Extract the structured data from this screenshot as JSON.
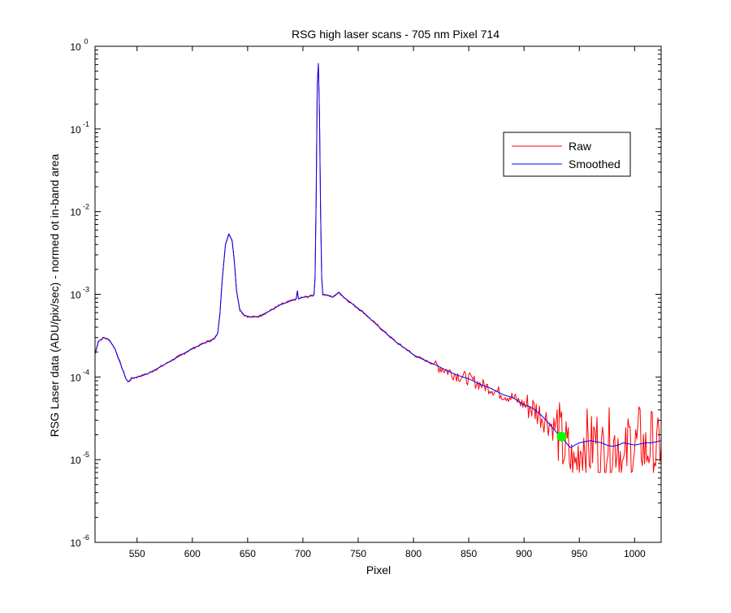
{
  "chart_data": {
    "type": "line",
    "title": "RSG high laser scans  - 705 nm    Pixel 714",
    "xlabel": "Pixel",
    "ylabel": "RSG Laser data (ADU/pix/sec) - normed ot in-band area",
    "xlim": [
      512,
      1024
    ],
    "ylim": [
      1e-06,
      1
    ],
    "yscale": "log",
    "grid": false,
    "legend_position": "top-right",
    "x_ticks": [
      {
        "value": 550,
        "label": "550"
      },
      {
        "value": 600,
        "label": "600"
      },
      {
        "value": 650,
        "label": "650"
      },
      {
        "value": 700,
        "label": "700"
      },
      {
        "value": 750,
        "label": "750"
      },
      {
        "value": 800,
        "label": "800"
      },
      {
        "value": 850,
        "label": "850"
      },
      {
        "value": 900,
        "label": "900"
      },
      {
        "value": 950,
        "label": "950"
      },
      {
        "value": 1000,
        "label": "1000"
      }
    ],
    "y_ticks": [
      {
        "value": 1e-06,
        "base": "10",
        "exp": "-6"
      },
      {
        "value": 1e-05,
        "base": "10",
        "exp": "-5"
      },
      {
        "value": 0.0001,
        "base": "10",
        "exp": "-4"
      },
      {
        "value": 0.001,
        "base": "10",
        "exp": "-3"
      },
      {
        "value": 0.01,
        "base": "10",
        "exp": "-2"
      },
      {
        "value": 0.1,
        "base": "10",
        "exp": "-1"
      },
      {
        "value": 1,
        "base": "10",
        "exp": "0"
      }
    ],
    "series": [
      {
        "name": "Raw",
        "color": "#ff0000",
        "points": [
          [
            512,
            0.00019
          ],
          [
            515,
            0.00027
          ],
          [
            520,
            0.0003
          ],
          [
            525,
            0.00028
          ],
          [
            530,
            0.00022
          ],
          [
            535,
            0.000145
          ],
          [
            540,
            9.5e-05
          ],
          [
            542,
            8.7e-05
          ],
          [
            545,
            9.6e-05
          ],
          [
            550,
            0.0001
          ],
          [
            560,
            0.00011
          ],
          [
            570,
            0.00013
          ],
          [
            580,
            0.000155
          ],
          [
            590,
            0.000185
          ],
          [
            600,
            0.00022
          ],
          [
            610,
            0.000255
          ],
          [
            620,
            0.00029
          ],
          [
            623,
            0.00034
          ],
          [
            625,
            0.0006
          ],
          [
            627,
            0.0015
          ],
          [
            630,
            0.004
          ],
          [
            633,
            0.0054
          ],
          [
            636,
            0.0045
          ],
          [
            638,
            0.0025
          ],
          [
            640,
            0.0011
          ],
          [
            643,
            0.00065
          ],
          [
            647,
            0.00056
          ],
          [
            652,
            0.00053
          ],
          [
            660,
            0.00054
          ],
          [
            670,
            0.00063
          ],
          [
            680,
            0.00075
          ],
          [
            690,
            0.00084
          ],
          [
            694,
            0.00088
          ],
          [
            695,
            0.0011
          ],
          [
            696,
            0.00088
          ],
          [
            700,
            0.00092
          ],
          [
            705,
            0.00094
          ],
          [
            708,
            0.00096
          ],
          [
            710,
            0.00098
          ],
          [
            711,
            0.0016
          ],
          [
            712,
            0.015
          ],
          [
            713,
            0.35
          ],
          [
            714,
            0.62
          ],
          [
            715,
            0.15
          ],
          [
            716,
            0.01
          ],
          [
            717,
            0.0016
          ],
          [
            718,
            0.001
          ],
          [
            722,
            0.00098
          ],
          [
            727,
            0.00092
          ],
          [
            730,
            0.001
          ],
          [
            733,
            0.00105
          ],
          [
            737,
            0.00092
          ],
          [
            745,
            0.00076
          ],
          [
            755,
            0.0006
          ],
          [
            765,
            0.00045
          ],
          [
            775,
            0.00034
          ],
          [
            785,
            0.00026
          ],
          [
            795,
            0.00021
          ],
          [
            800,
            0.000185
          ],
          [
            810,
            0.00016
          ],
          [
            820,
            0.00014
          ],
          [
            830,
            0.00012
          ],
          [
            840,
            0.000105
          ],
          [
            850,
            9.5e-05
          ],
          [
            860,
            8.2e-05
          ],
          [
            870,
            7.3e-05
          ],
          [
            880,
            6.2e-05
          ],
          [
            890,
            5.6e-05
          ],
          [
            900,
            4.6e-05
          ],
          [
            905,
            4.4e-05
          ],
          [
            910,
            4e-05
          ],
          [
            915,
            3.5e-05
          ],
          [
            920,
            3.1e-05
          ],
          [
            925,
            2.6e-05
          ],
          [
            930,
            2.4e-05
          ],
          [
            935,
            1.5e-05
          ],
          [
            940,
            1.2e-05
          ],
          [
            945,
            7e-06
          ],
          [
            950,
            1.3e-05
          ],
          [
            955,
            1.9e-05
          ],
          [
            960,
            1.3e-05
          ],
          [
            965,
            1.9e-05
          ],
          [
            970,
            1.1e-05
          ],
          [
            975,
            1.8e-05
          ],
          [
            980,
            1.4e-05
          ],
          [
            985,
            1.9e-05
          ],
          [
            990,
            7e-06
          ],
          [
            995,
            1.8e-05
          ],
          [
            1000,
            1.3e-05
          ],
          [
            1005,
            1.9e-05
          ],
          [
            1010,
            1.2e-05
          ],
          [
            1015,
            1.7e-05
          ],
          [
            1020,
            1.1e-05
          ],
          [
            1024,
            1.9e-05
          ]
        ],
        "noise": [
          {
            "from": 820,
            "to": 900,
            "amp": 0.08
          },
          {
            "from": 900,
            "to": 930,
            "amp": 0.18
          },
          {
            "from": 930,
            "to": 1024,
            "amp": 0.42
          }
        ]
      },
      {
        "name": "Smoothed",
        "color": "#0000ff",
        "points": [
          [
            512,
            0.00019
          ],
          [
            515,
            0.00027
          ],
          [
            520,
            0.0003
          ],
          [
            525,
            0.00028
          ],
          [
            530,
            0.00022
          ],
          [
            535,
            0.000145
          ],
          [
            540,
            9.5e-05
          ],
          [
            542,
            8.7e-05
          ],
          [
            545,
            9.6e-05
          ],
          [
            550,
            0.0001
          ],
          [
            560,
            0.00011
          ],
          [
            570,
            0.00013
          ],
          [
            580,
            0.000155
          ],
          [
            590,
            0.000185
          ],
          [
            600,
            0.00022
          ],
          [
            610,
            0.000255
          ],
          [
            620,
            0.00029
          ],
          [
            623,
            0.00034
          ],
          [
            625,
            0.0006
          ],
          [
            627,
            0.0015
          ],
          [
            630,
            0.004
          ],
          [
            633,
            0.0054
          ],
          [
            636,
            0.0045
          ],
          [
            638,
            0.0025
          ],
          [
            640,
            0.0011
          ],
          [
            643,
            0.00065
          ],
          [
            647,
            0.00056
          ],
          [
            652,
            0.00053
          ],
          [
            660,
            0.00054
          ],
          [
            670,
            0.00063
          ],
          [
            680,
            0.00075
          ],
          [
            690,
            0.00084
          ],
          [
            694,
            0.00088
          ],
          [
            695,
            0.0011
          ],
          [
            696,
            0.00088
          ],
          [
            700,
            0.00092
          ],
          [
            705,
            0.00094
          ],
          [
            708,
            0.00096
          ],
          [
            710,
            0.00098
          ],
          [
            711,
            0.0016
          ],
          [
            712,
            0.015
          ],
          [
            713,
            0.35
          ],
          [
            714,
            0.62
          ],
          [
            715,
            0.15
          ],
          [
            716,
            0.01
          ],
          [
            717,
            0.0016
          ],
          [
            718,
            0.001
          ],
          [
            722,
            0.00098
          ],
          [
            727,
            0.00092
          ],
          [
            730,
            0.001
          ],
          [
            733,
            0.00105
          ],
          [
            737,
            0.00092
          ],
          [
            745,
            0.00076
          ],
          [
            755,
            0.0006
          ],
          [
            765,
            0.00045
          ],
          [
            775,
            0.00034
          ],
          [
            785,
            0.00026
          ],
          [
            795,
            0.00021
          ],
          [
            800,
            0.000185
          ],
          [
            810,
            0.00016
          ],
          [
            820,
            0.00014
          ],
          [
            830,
            0.00012
          ],
          [
            840,
            0.000105
          ],
          [
            850,
            9.5e-05
          ],
          [
            860,
            8.2e-05
          ],
          [
            870,
            7.3e-05
          ],
          [
            880,
            6.2e-05
          ],
          [
            890,
            5.6e-05
          ],
          [
            900,
            4.6e-05
          ],
          [
            905,
            4.4e-05
          ],
          [
            910,
            4e-05
          ],
          [
            915,
            3.5e-05
          ],
          [
            920,
            3e-05
          ],
          [
            925,
            2.5e-05
          ],
          [
            930,
            2.1e-05
          ],
          [
            934,
            1.9e-05
          ],
          [
            938,
            1.6e-05
          ],
          [
            942,
            1.4e-05
          ],
          [
            946,
            1.5e-05
          ],
          [
            950,
            1.6e-05
          ],
          [
            955,
            1.65e-05
          ],
          [
            960,
            1.7e-05
          ],
          [
            965,
            1.65e-05
          ],
          [
            970,
            1.6e-05
          ],
          [
            975,
            1.5e-05
          ],
          [
            980,
            1.45e-05
          ],
          [
            985,
            1.5e-05
          ],
          [
            990,
            1.6e-05
          ],
          [
            995,
            1.55e-05
          ],
          [
            1000,
            1.5e-05
          ],
          [
            1005,
            1.55e-05
          ],
          [
            1010,
            1.6e-05
          ],
          [
            1015,
            1.6e-05
          ],
          [
            1020,
            1.65e-05
          ],
          [
            1024,
            1.7e-05
          ]
        ]
      }
    ],
    "marker": {
      "x": 934,
      "y": 1.9e-05,
      "color": "#00ff00"
    }
  }
}
